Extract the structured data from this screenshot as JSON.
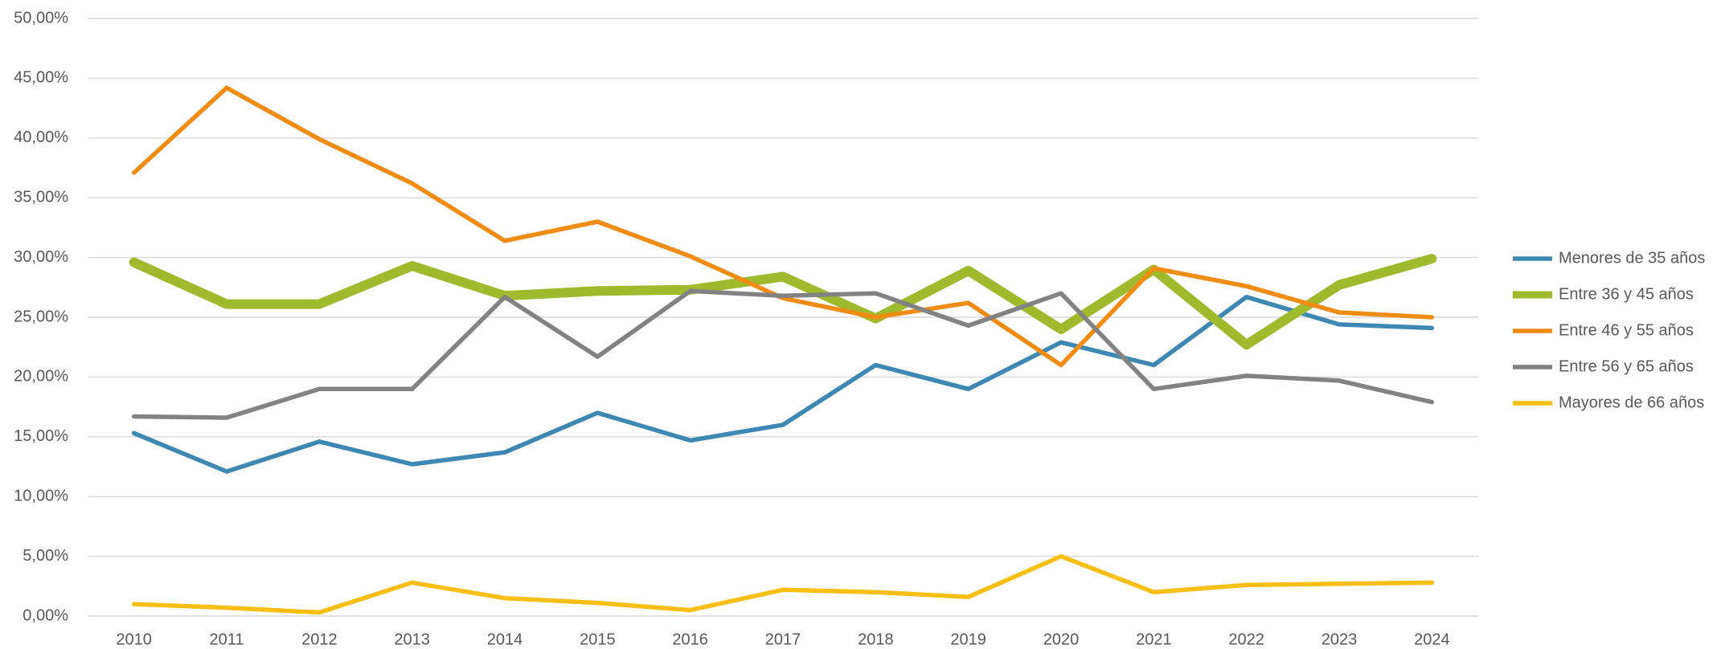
{
  "chart_data": {
    "type": "line",
    "categories": [
      "2010",
      "2011",
      "2012",
      "2013",
      "2014",
      "2015",
      "2016",
      "2017",
      "2018",
      "2019",
      "2020",
      "2021",
      "2022",
      "2023",
      "2024"
    ],
    "ylim": [
      0,
      50
    ],
    "yticks": [
      {
        "value": 0,
        "label": "0,00%"
      },
      {
        "value": 5,
        "label": "5,00%"
      },
      {
        "value": 10,
        "label": "10,00%"
      },
      {
        "value": 15,
        "label": "15,00%"
      },
      {
        "value": 20,
        "label": "20,00%"
      },
      {
        "value": 25,
        "label": "25,00%"
      },
      {
        "value": 30,
        "label": "30,00%"
      },
      {
        "value": 35,
        "label": "35,00%"
      },
      {
        "value": 40,
        "label": "40,00%"
      },
      {
        "value": 45,
        "label": "45,00%"
      },
      {
        "value": 50,
        "label": "50,00%"
      }
    ],
    "grid": true,
    "legend": "right",
    "series": [
      {
        "name": "Menores de 35 años",
        "color": "#3d87b3",
        "values": [
          15.3,
          12.1,
          14.6,
          12.7,
          13.7,
          17.0,
          14.7,
          16.0,
          21.0,
          19.0,
          22.9,
          21.0,
          26.7,
          24.4,
          24.1
        ]
      },
      {
        "name": "Entre 36 y 45 años",
        "color": "#9fba2d",
        "values": [
          29.6,
          26.1,
          26.1,
          29.3,
          26.8,
          27.2,
          27.3,
          28.4,
          24.9,
          28.9,
          24.0,
          29.0,
          22.7,
          27.7,
          29.9
        ]
      },
      {
        "name": "Entre 46 y 55 años",
        "color": "#f08b14",
        "values": [
          37.1,
          44.2,
          39.9,
          36.2,
          31.4,
          33.0,
          30.1,
          26.6,
          25.0,
          26.2,
          21.0,
          29.1,
          27.6,
          25.4,
          25.0
        ]
      },
      {
        "name": "Entre 56 y 65 años",
        "color": "#828282",
        "values": [
          16.7,
          16.6,
          19.0,
          19.0,
          26.7,
          21.7,
          27.2,
          26.8,
          27.0,
          24.3,
          27.0,
          19.0,
          20.1,
          19.7,
          17.9
        ]
      },
      {
        "name": "Mayores de 66 años",
        "color": "#f7be16",
        "values": [
          1.0,
          0.7,
          0.3,
          2.8,
          1.5,
          1.1,
          0.5,
          2.2,
          2.0,
          1.6,
          5.0,
          2.0,
          2.6,
          2.7,
          2.8
        ]
      }
    ]
  }
}
